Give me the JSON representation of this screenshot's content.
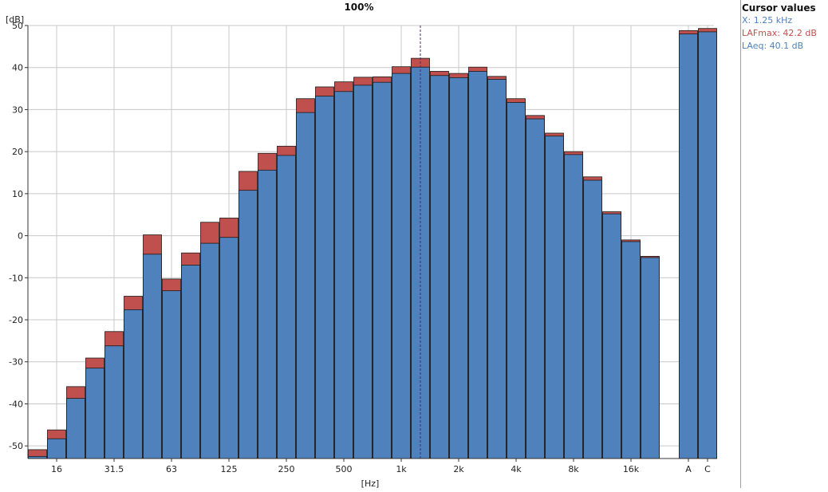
{
  "chart_data": {
    "type": "bar",
    "title": "100%",
    "ylabel": "[dB]",
    "xlabel": "[Hz]",
    "ylim": [
      -53,
      50
    ],
    "yticks": [
      -50,
      -40,
      -30,
      -20,
      -10,
      0,
      10,
      20,
      30,
      40,
      50
    ],
    "grid": true,
    "categories": [
      "12.5",
      "16",
      "20",
      "25",
      "31.5",
      "40",
      "50",
      "63",
      "80",
      "100",
      "125",
      "160",
      "200",
      "250",
      "315",
      "400",
      "500",
      "630",
      "800",
      "1k",
      "1.25k",
      "1.6k",
      "2k",
      "2.5k",
      "3.15k",
      "4k",
      "5k",
      "6.3k",
      "8k",
      "10k",
      "12.5k",
      "16k",
      "20k",
      "A",
      "C"
    ],
    "xtick_labels": [
      "16",
      "31.5",
      "63",
      "125",
      "250",
      "500",
      "1k",
      "2k",
      "4k",
      "8k",
      "16k",
      "A",
      "C"
    ],
    "series": [
      {
        "name": "LAFmax",
        "color": "#c0504d",
        "values": [
          -50.9,
          -46.2,
          -35.9,
          -29.1,
          -22.8,
          -14.4,
          0.2,
          -10.3,
          -4.1,
          3.2,
          4.2,
          15.3,
          19.6,
          21.3,
          32.6,
          35.4,
          36.6,
          37.7,
          37.8,
          40.2,
          42.2,
          39.1,
          38.6,
          40.1,
          37.9,
          32.6,
          28.6,
          24.4,
          20.0,
          14.0,
          5.7,
          -1.0,
          -4.9,
          48.8,
          49.3
        ]
      },
      {
        "name": "LAeq",
        "color": "#4f81bd",
        "values": [
          -52.5,
          -48.3,
          -38.7,
          -31.5,
          -26.2,
          -17.6,
          -4.4,
          -13.1,
          -7.0,
          -1.8,
          -0.4,
          10.8,
          15.6,
          19.1,
          29.3,
          33.2,
          34.3,
          35.8,
          36.5,
          38.6,
          40.1,
          38.1,
          37.6,
          39.1,
          37.2,
          31.7,
          27.8,
          23.7,
          19.3,
          13.2,
          5.2,
          -1.4,
          -5.2,
          48.0,
          48.5
        ]
      }
    ],
    "cursor": {
      "category": "1.25k"
    }
  },
  "cursor_panel": {
    "title": "Cursor values",
    "x_line": "X: 1.25 kHz",
    "lafmax_line": "LAFmax: 42.2 dB",
    "laeq_line": "LAeq: 40.1 dB",
    "x_color": "#4f81bd",
    "lafmax_color": "#c0504d",
    "laeq_color": "#4f81bd"
  }
}
